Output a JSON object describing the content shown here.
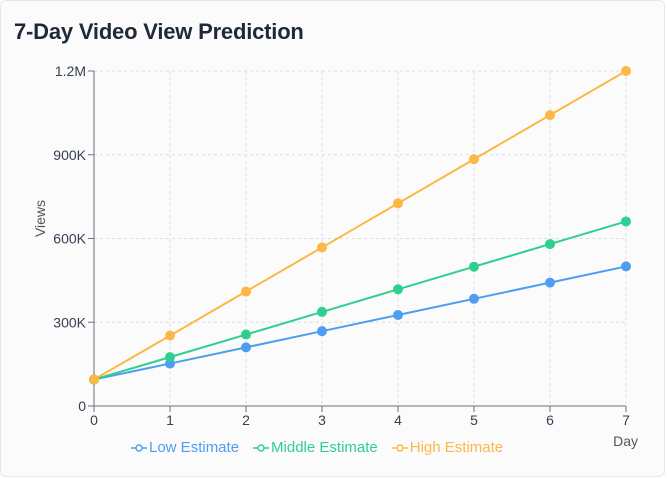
{
  "title": "7-Day Video View Prediction",
  "colors": {
    "low": "#4d9ef0",
    "middle": "#2ecf8f",
    "high": "#fbb845",
    "grid": "#d9dde3",
    "axis": "#6b7280"
  },
  "chart_data": {
    "type": "line",
    "title": "7-Day Video View Prediction",
    "xlabel": "Day",
    "ylabel": "Views",
    "x": [
      0,
      1,
      2,
      3,
      4,
      5,
      6,
      7
    ],
    "x_ticks": [
      "0",
      "1",
      "2",
      "3",
      "4",
      "5",
      "6",
      "7"
    ],
    "ylim": [
      0,
      1200000
    ],
    "y_ticks": [
      {
        "value": 0,
        "label": "0"
      },
      {
        "value": 300000,
        "label": "300K"
      },
      {
        "value": 600000,
        "label": "600K"
      },
      {
        "value": 900000,
        "label": "900K"
      },
      {
        "value": 1200000,
        "label": "1.2M"
      }
    ],
    "grid": true,
    "legend_position": "bottom",
    "series": [
      {
        "name": "Low Estimate",
        "color": "#4d9ef0",
        "values": [
          95000,
          152000,
          210000,
          268000,
          326000,
          384000,
          442000,
          500000
        ]
      },
      {
        "name": "Middle Estimate",
        "color": "#2ecf8f",
        "values": [
          95000,
          175000,
          256000,
          337000,
          418000,
          499000,
          580000,
          661000
        ]
      },
      {
        "name": "High Estimate",
        "color": "#fbb845",
        "values": [
          95000,
          252000,
          410000,
          568000,
          726000,
          884000,
          1042000,
          1200000
        ]
      }
    ]
  }
}
